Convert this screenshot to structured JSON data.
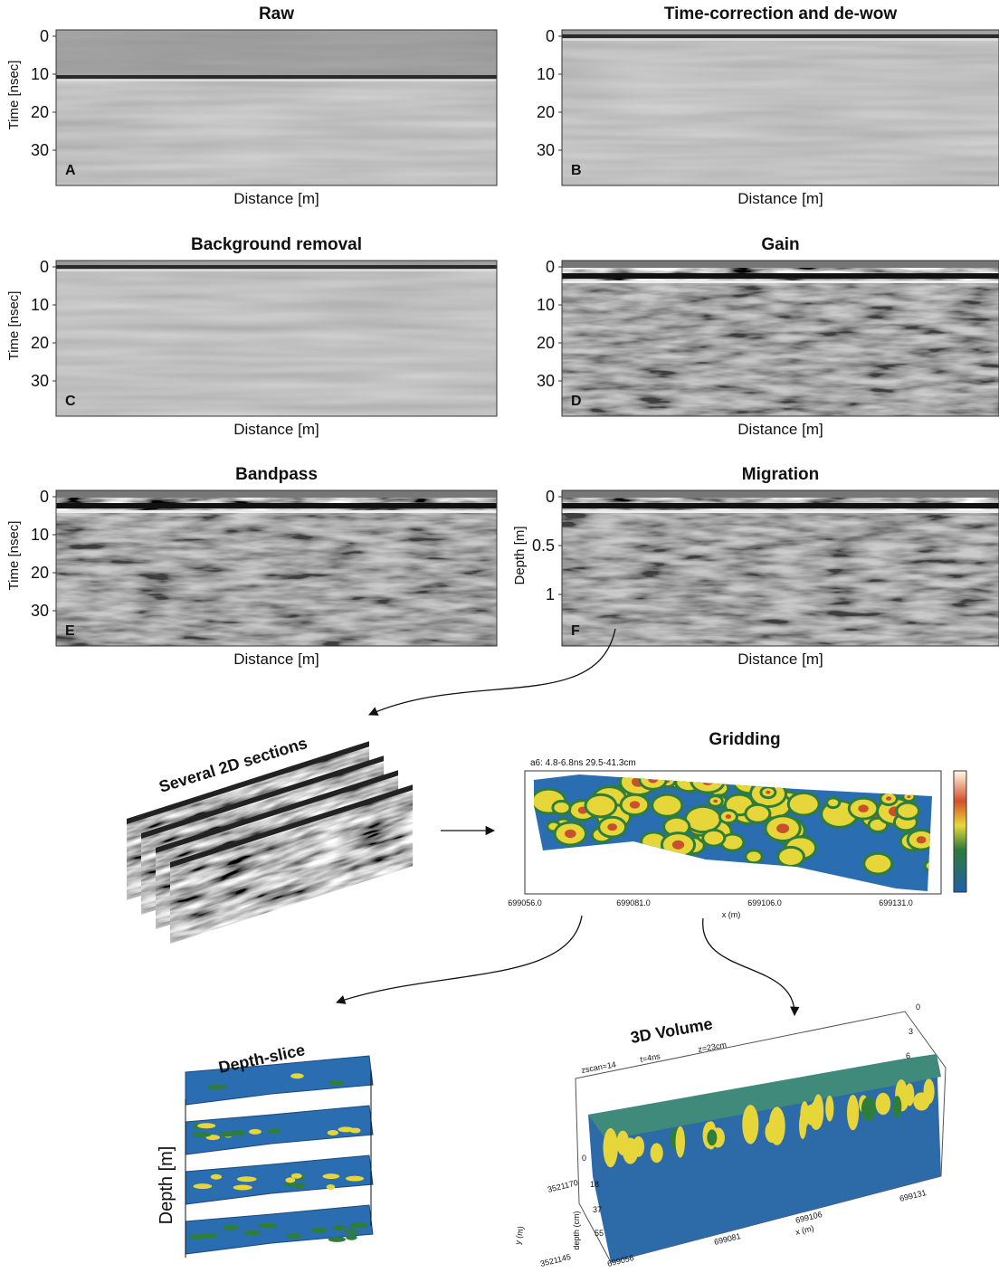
{
  "panels": [
    {
      "title": "Raw",
      "letter": "A",
      "y_label": "Time [nsec]",
      "y_ticks": [
        "0",
        "10",
        "20",
        "30"
      ],
      "x_label": "Distance [m]"
    },
    {
      "title": "Time-correction and de-wow",
      "letter": "B",
      "y_label": "",
      "y_ticks": [
        "0",
        "10",
        "20",
        "30"
      ],
      "x_label": "Distance [m]"
    },
    {
      "title": "Background removal",
      "letter": "C",
      "y_label": "Time [nsec]",
      "y_ticks": [
        "0",
        "10",
        "20",
        "30"
      ],
      "x_label": "Distance [m]"
    },
    {
      "title": "Gain",
      "letter": "D",
      "y_label": "",
      "y_ticks": [
        "0",
        "10",
        "20",
        "30"
      ],
      "x_label": "Distance [m]"
    },
    {
      "title": "Bandpass",
      "letter": "E",
      "y_label": "Time [nsec]",
      "y_ticks": [
        "0",
        "10",
        "20",
        "30"
      ],
      "x_label": "Distance [m]"
    },
    {
      "title": "Migration",
      "letter": "F",
      "y_label": "Depth [m]",
      "y_ticks": [
        "0",
        "0.5",
        "1"
      ],
      "x_label": "Distance [m]"
    }
  ],
  "sections": {
    "title": "Several 2D sections"
  },
  "gridding": {
    "title": "Gridding",
    "header": "a6:  4.8-6.8ns  29.5-41.3cm",
    "x_ticks": [
      "699056.0",
      "699081.0",
      "699106.0",
      "699131.0"
    ],
    "x_label": "x (m)"
  },
  "depth_slice": {
    "title": "Depth-slice",
    "axis_label": "Depth [m]"
  },
  "volume": {
    "title": "3D Volume",
    "params": [
      "zscan=14",
      "t=4ns",
      "z=23cm"
    ],
    "x_ticks": [
      "699056",
      "699081",
      "699106",
      "699131"
    ],
    "x_label": "x (m)",
    "y_ticks": [
      "3521170",
      "3521145"
    ],
    "y_label": "y (m)",
    "depth_ticks": [
      "0",
      "18",
      "37",
      "55"
    ],
    "depth_label": "depth (cm)",
    "top_ticks": [
      "0",
      "3",
      "6"
    ]
  }
}
